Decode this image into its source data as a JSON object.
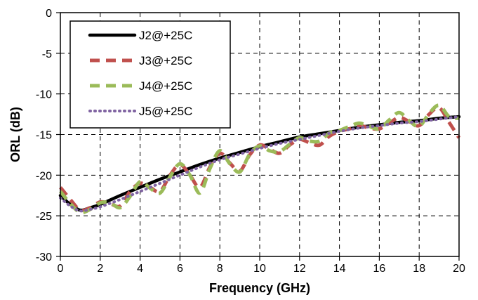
{
  "chart_data": {
    "type": "line",
    "title": "",
    "xlabel": "Frequency (GHz)",
    "ylabel": "ORL (dB)",
    "xlim": [
      0,
      20
    ],
    "ylim": [
      -30,
      0
    ],
    "x_ticks": [
      "0",
      "2",
      "4",
      "6",
      "8",
      "10",
      "12",
      "14",
      "16",
      "18",
      "20"
    ],
    "y_ticks": [
      "0",
      "-5",
      "-10",
      "-15",
      "-20",
      "-25",
      "-30"
    ],
    "grid": true,
    "legend_position": "top-left",
    "series": [
      {
        "name": "J2@+25C",
        "color": "#000000",
        "style": "solid",
        "x": [
          0,
          0.5,
          1,
          1.5,
          2,
          3,
          4,
          5,
          6,
          7,
          8,
          9,
          10,
          11,
          12,
          13,
          14,
          15,
          16,
          17,
          18,
          19,
          20
        ],
        "y": [
          -22.5,
          -23.6,
          -24.3,
          -24.0,
          -23.6,
          -22.5,
          -21.5,
          -20.5,
          -19.6,
          -18.7,
          -17.9,
          -17.2,
          -16.5,
          -15.9,
          -15.3,
          -14.9,
          -14.5,
          -14.1,
          -13.8,
          -13.5,
          -13.3,
          -13.0,
          -12.8
        ]
      },
      {
        "name": "J3@+25C",
        "color": "#c0504d",
        "style": "dashed",
        "x": [
          0,
          0.5,
          1,
          1.5,
          2,
          2.5,
          3,
          3.5,
          4,
          4.5,
          5,
          5.5,
          6,
          6.5,
          7,
          7.5,
          8,
          8.5,
          9,
          9.5,
          10,
          10.5,
          11,
          11.5,
          12,
          12.5,
          13,
          13.5,
          14,
          14.5,
          15,
          15.5,
          16,
          16.5,
          17,
          17.5,
          18,
          18.5,
          19,
          19.5,
          20
        ],
        "y": [
          -21.5,
          -23.0,
          -24.3,
          -24.0,
          -23.3,
          -23.5,
          -23.8,
          -22.0,
          -21.0,
          -21.5,
          -22.0,
          -20.0,
          -18.7,
          -20.0,
          -21.5,
          -19.0,
          -17.3,
          -18.5,
          -19.5,
          -17.5,
          -16.3,
          -16.8,
          -17.3,
          -16.3,
          -15.6,
          -16.0,
          -16.3,
          -15.2,
          -14.6,
          -14.3,
          -13.9,
          -14.2,
          -14.3,
          -13.6,
          -12.9,
          -13.4,
          -13.9,
          -12.5,
          -11.7,
          -13.5,
          -15.4
        ]
      },
      {
        "name": "J4@+25C",
        "color": "#9bbb59",
        "style": "dashed",
        "x": [
          0,
          0.5,
          1,
          1.5,
          2,
          2.5,
          3,
          3.5,
          4,
          4.5,
          5,
          5.5,
          6,
          6.5,
          7,
          7.5,
          8,
          8.5,
          9,
          9.5,
          10,
          10.5,
          11,
          11.5,
          12,
          12.5,
          13,
          13.5,
          14,
          14.5,
          15,
          15.5,
          16,
          16.5,
          17,
          17.5,
          18,
          18.5,
          19,
          19.5,
          20
        ],
        "y": [
          -22.0,
          -23.5,
          -24.6,
          -24.2,
          -23.4,
          -23.4,
          -24.0,
          -22.6,
          -20.8,
          -21.6,
          -22.2,
          -20.2,
          -18.6,
          -20.0,
          -22.2,
          -19.2,
          -17.0,
          -18.6,
          -19.6,
          -17.4,
          -16.4,
          -17.0,
          -17.1,
          -16.2,
          -15.4,
          -15.8,
          -15.8,
          -14.8,
          -14.5,
          -14.0,
          -13.6,
          -14.0,
          -14.3,
          -13.2,
          -12.3,
          -13.3,
          -14.0,
          -12.4,
          -11.4,
          -12.8,
          -13.0
        ]
      },
      {
        "name": "J5@+25C",
        "color": "#8064a2",
        "style": "dotted",
        "x": [
          0,
          0.5,
          1,
          1.5,
          2,
          3,
          4,
          5,
          6,
          7,
          8,
          9,
          10,
          11,
          12,
          13,
          14,
          15,
          16,
          17,
          18,
          19,
          20
        ],
        "y": [
          -22.8,
          -23.8,
          -24.4,
          -24.2,
          -23.9,
          -23.0,
          -22.0,
          -21.0,
          -20.0,
          -19.0,
          -18.1,
          -17.4,
          -16.7,
          -16.1,
          -15.6,
          -15.1,
          -14.6,
          -14.2,
          -13.9,
          -13.6,
          -13.4,
          -13.1,
          -12.8
        ]
      }
    ]
  }
}
